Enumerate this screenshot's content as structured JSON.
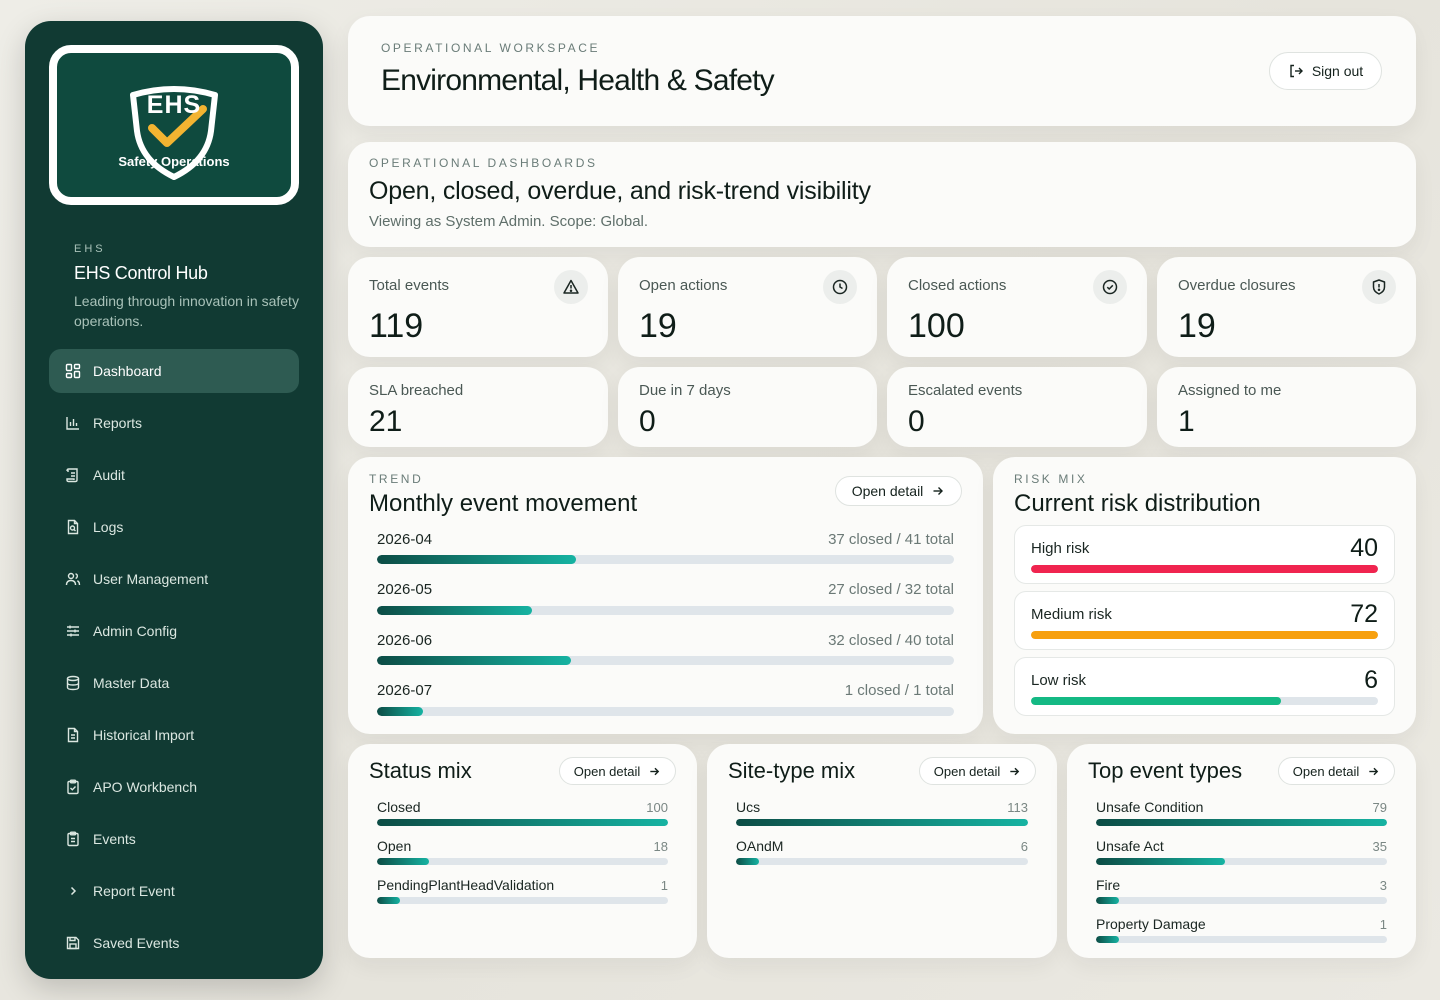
{
  "sidebar": {
    "logo_text": "EHS",
    "logo_sub": "Safety Operations",
    "overline": "EHS",
    "title": "EHS Control Hub",
    "description": "Leading through innovation in safety operations.",
    "items": [
      {
        "label": "Dashboard",
        "icon": "dashboard-icon"
      },
      {
        "label": "Reports",
        "icon": "bar-chart-icon"
      },
      {
        "label": "Audit",
        "icon": "scroll-icon"
      },
      {
        "label": "Logs",
        "icon": "file-search-icon"
      },
      {
        "label": "User Management",
        "icon": "users-icon"
      },
      {
        "label": "Admin Config",
        "icon": "sliders-icon"
      },
      {
        "label": "Master Data",
        "icon": "database-icon"
      },
      {
        "label": "Historical Import",
        "icon": "file-text-icon"
      },
      {
        "label": "APO Workbench",
        "icon": "clipboard-check-icon"
      },
      {
        "label": "Events",
        "icon": "clipboard-list-icon"
      },
      {
        "label": "Report Event",
        "icon": "chevron-right-icon"
      },
      {
        "label": "Saved Events",
        "icon": "save-icon"
      }
    ]
  },
  "header": {
    "overline": "OPERATIONAL WORKSPACE",
    "title": "Environmental, Health & Safety",
    "signout_label": "Sign out"
  },
  "dashboard": {
    "overline": "OPERATIONAL DASHBOARDS",
    "title": "Open, closed, overdue, and risk-trend visibility",
    "subtitle": "Viewing as System Admin. Scope: Global."
  },
  "stats_top": [
    {
      "label": "Total events",
      "value": "119",
      "icon": "warning-triangle-icon"
    },
    {
      "label": "Open actions",
      "value": "19",
      "icon": "clock-icon"
    },
    {
      "label": "Closed actions",
      "value": "100",
      "icon": "check-circle-icon"
    },
    {
      "label": "Overdue closures",
      "value": "19",
      "icon": "shield-alert-icon"
    }
  ],
  "stats_bottom": [
    {
      "label": "SLA breached",
      "value": "21"
    },
    {
      "label": "Due in 7 days",
      "value": "0"
    },
    {
      "label": "Escalated events",
      "value": "0"
    },
    {
      "label": "Assigned to me",
      "value": "1"
    }
  ],
  "trend": {
    "overline": "TREND",
    "title": "Monthly event movement",
    "button_label": "Open detail",
    "rows": [
      {
        "month": "2026-04",
        "caption": "37 closed / 41 total",
        "fraction": 0.345
      },
      {
        "month": "2026-05",
        "caption": "27 closed / 32 total",
        "fraction": 0.269
      },
      {
        "month": "2026-06",
        "caption": "32 closed / 40 total",
        "fraction": 0.336
      },
      {
        "month": "2026-07",
        "caption": "1 closed / 1 total",
        "fraction": 0.08
      }
    ]
  },
  "risk": {
    "overline": "RISK MIX",
    "title": "Current risk distribution",
    "items": [
      {
        "label": "High risk",
        "value": "40",
        "fraction": 1.0,
        "color": "#f0244f"
      },
      {
        "label": "Medium risk",
        "value": "72",
        "fraction": 1.0,
        "color": "#f7a00f"
      },
      {
        "label": "Low risk",
        "value": "6",
        "fraction": 0.72,
        "color": "#14b984"
      }
    ]
  },
  "status_mix": {
    "title": "Status mix",
    "button_label": "Open detail",
    "rows": [
      {
        "label": "Closed",
        "value": "100",
        "fraction": 1.0
      },
      {
        "label": "Open",
        "value": "18",
        "fraction": 0.18
      },
      {
        "label": "PendingPlantHeadValidation",
        "value": "1",
        "fraction": 0.08
      }
    ]
  },
  "site_mix": {
    "title": "Site-type mix",
    "button_label": "Open detail",
    "rows": [
      {
        "label": "Ucs",
        "value": "113",
        "fraction": 1.0
      },
      {
        "label": "OAndM",
        "value": "6",
        "fraction": 0.08
      }
    ]
  },
  "event_types": {
    "title": "Top event types",
    "button_label": "Open detail",
    "rows": [
      {
        "label": "Unsafe Condition",
        "value": "79",
        "fraction": 1.0
      },
      {
        "label": "Unsafe Act",
        "value": "35",
        "fraction": 0.443
      },
      {
        "label": "Fire",
        "value": "3",
        "fraction": 0.08
      },
      {
        "label": "Property Damage",
        "value": "1",
        "fraction": 0.08
      }
    ]
  }
}
